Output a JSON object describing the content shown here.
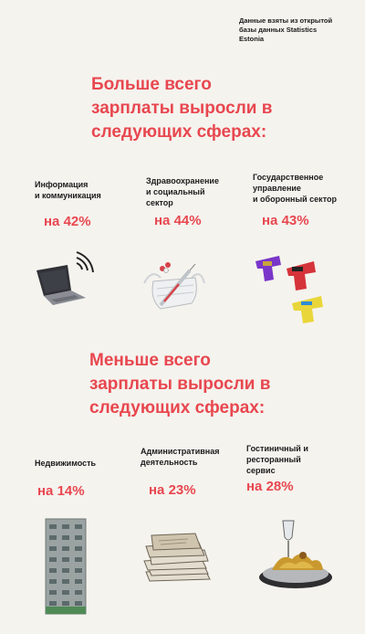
{
  "source_note": [
    "Данные взяты из открытой",
    "базы данных Statistics Estonia"
  ],
  "sections": {
    "most": {
      "title": [
        "Больше всего",
        "зарплаты выросли в",
        "следующих сферах:"
      ],
      "items": [
        {
          "label": [
            "Информация",
            "и коммуникация"
          ],
          "value": "на 42%",
          "icon": "laptop-wifi-icon"
        },
        {
          "label": [
            "Здравоохранение",
            "и социальный",
            "сектор"
          ],
          "value": "на 44%",
          "icon": "mask-syringe-pills-icon"
        },
        {
          "label": [
            "Государственное",
            "управление",
            "и оборонный сектор"
          ],
          "value": "на 43%",
          "icon": "water-guns-icon"
        }
      ]
    },
    "least": {
      "title": [
        "Меньше всего",
        "зарплаты выросли в",
        "следующих сферах:"
      ],
      "items": [
        {
          "label": [
            "Недвижимость"
          ],
          "value": "на 14%",
          "icon": "apartment-building-icon"
        },
        {
          "label": [
            "Административная",
            "деятельность"
          ],
          "value": "на 23%",
          "icon": "paper-stack-icon"
        },
        {
          "label": [
            "Гостиничный и",
            "ресторанный",
            "сервис"
          ],
          "value": "на 28%",
          "icon": "food-tray-icon"
        }
      ]
    }
  },
  "colors": {
    "accent": "#e8474f",
    "background": "#f5f3ee",
    "text": "#1a1a1a"
  }
}
